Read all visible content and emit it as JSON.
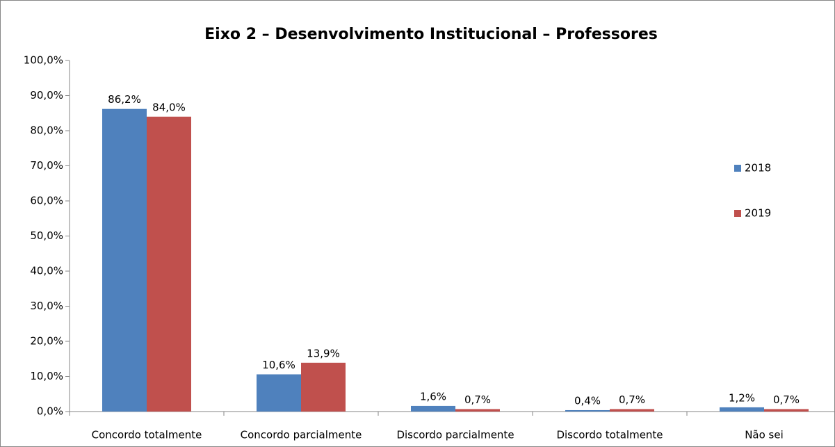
{
  "chart_data": {
    "type": "bar",
    "title": "Eixo 2 – Desenvolvimento Institucional – Professores",
    "categories": [
      "Concordo totalmente",
      "Concordo parcialmente",
      "Discordo parcialmente",
      "Discordo totalmente",
      "Não sei"
    ],
    "series": [
      {
        "name": "2018",
        "color": "#4f81bd",
        "values": [
          86.2,
          10.6,
          1.6,
          0.4,
          1.2
        ],
        "value_labels": [
          "86,2%",
          "10,6%",
          "1,6%",
          "0,4%",
          "1,2%"
        ]
      },
      {
        "name": "2019",
        "color": "#c0504d",
        "values": [
          84.0,
          13.9,
          0.7,
          0.7,
          0.7
        ],
        "value_labels": [
          "84,0%",
          "13,9%",
          "0,7%",
          "0,7%",
          "0,7%"
        ]
      }
    ],
    "ylim": [
      0,
      100
    ],
    "yticks": [
      {
        "value": 0,
        "label": "0,0%"
      },
      {
        "value": 10,
        "label": "10,0%"
      },
      {
        "value": 20,
        "label": "20,0%"
      },
      {
        "value": 30,
        "label": "30,0%"
      },
      {
        "value": 40,
        "label": "40,0%"
      },
      {
        "value": 50,
        "label": "50,0%"
      },
      {
        "value": 60,
        "label": "60,0%"
      },
      {
        "value": 70,
        "label": "70,0%"
      },
      {
        "value": 80,
        "label": "80,0%"
      },
      {
        "value": 90,
        "label": "90,0%"
      },
      {
        "value": 100,
        "label": "100,0%"
      }
    ],
    "grid": false,
    "legend": "right"
  }
}
